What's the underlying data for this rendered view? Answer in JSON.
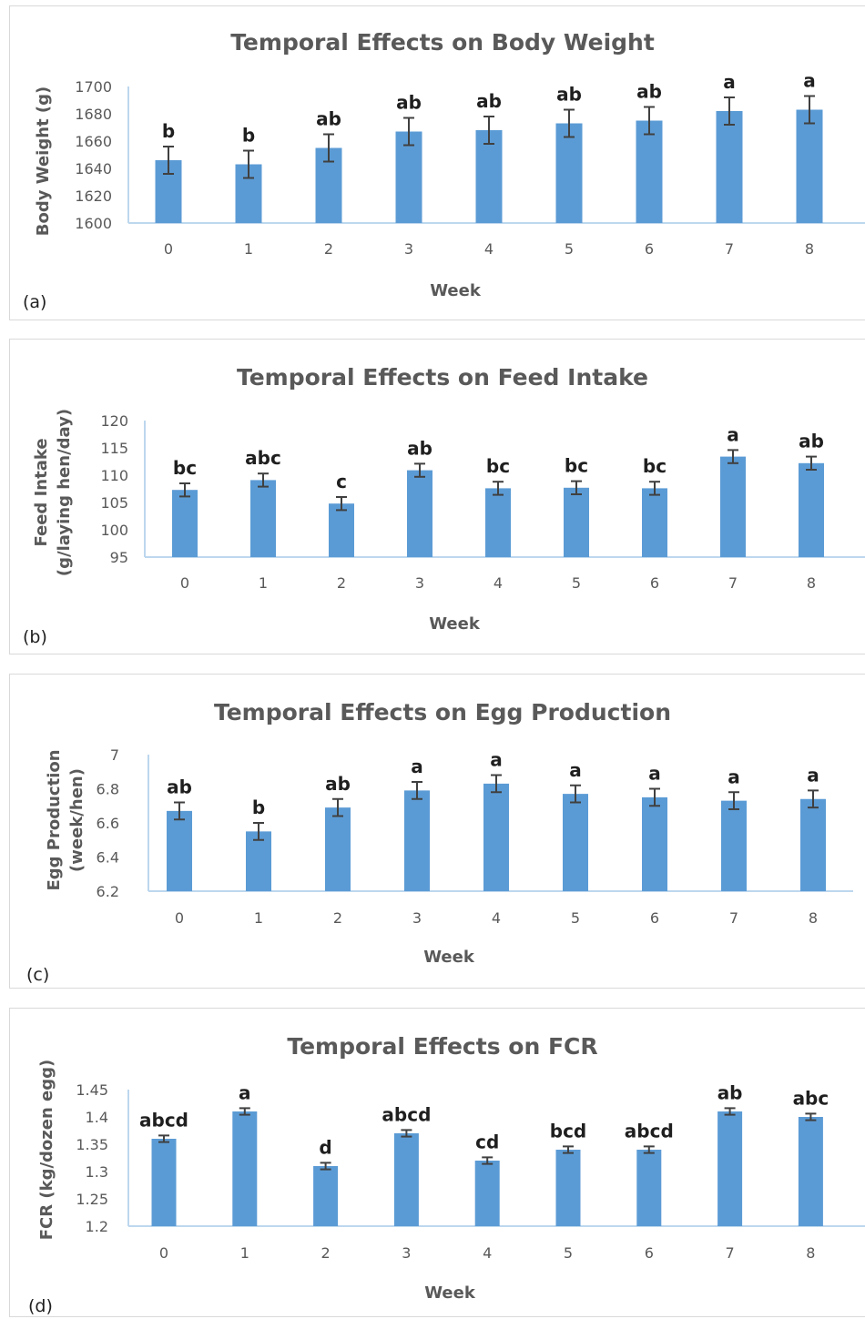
{
  "chart_data": [
    {
      "type": "bar",
      "panel": "(a)",
      "title": "Temporal Effects on Body Weight",
      "xlabel": "Week",
      "ylabel": [
        "Body Weight (g)"
      ],
      "categories": [
        "0",
        "1",
        "2",
        "3",
        "4",
        "5",
        "6",
        "7",
        "8"
      ],
      "values": [
        1646,
        1643,
        1655,
        1667,
        1668,
        1673,
        1675,
        1682,
        1683
      ],
      "error": [
        10,
        10,
        10,
        10,
        10,
        10,
        10,
        10,
        10
      ],
      "letters": [
        "b",
        "b",
        "ab",
        "ab",
        "ab",
        "ab",
        "ab",
        "a",
        "a"
      ],
      "ylim": [
        1600,
        1700
      ],
      "yticks": [
        "1600",
        "1620",
        "1640",
        "1660",
        "1680",
        "1700"
      ],
      "grid": false
    },
    {
      "type": "bar",
      "panel": "(b)",
      "title": "Temporal Effects on Feed Intake",
      "xlabel": "Week",
      "ylabel": [
        "Feed Intake",
        "(g/laying hen/day)"
      ],
      "categories": [
        "0",
        "1",
        "2",
        "3",
        "4",
        "5",
        "6",
        "7",
        "8"
      ],
      "values": [
        107.3,
        109.1,
        104.8,
        110.9,
        107.6,
        107.7,
        107.6,
        113.4,
        112.2
      ],
      "error": [
        1.2,
        1.2,
        1.2,
        1.2,
        1.2,
        1.2,
        1.2,
        1.2,
        1.2
      ],
      "letters": [
        "bc",
        "abc",
        "c",
        "ab",
        "bc",
        "bc",
        "bc",
        "a",
        "ab"
      ],
      "ylim": [
        95,
        120
      ],
      "yticks": [
        "95",
        "100",
        "105",
        "110",
        "115",
        "120"
      ],
      "grid": false
    },
    {
      "type": "bar",
      "panel": "(c)",
      "title": "Temporal Effects on Egg Production",
      "xlabel": "Week",
      "ylabel": [
        "Egg Production",
        "(week/hen)"
      ],
      "categories": [
        "0",
        "1",
        "2",
        "3",
        "4",
        "5",
        "6",
        "7",
        "8"
      ],
      "values": [
        6.67,
        6.55,
        6.69,
        6.79,
        6.83,
        6.77,
        6.75,
        6.73,
        6.74
      ],
      "error": [
        0.05,
        0.05,
        0.05,
        0.05,
        0.05,
        0.05,
        0.05,
        0.05,
        0.05
      ],
      "letters": [
        "ab",
        "b",
        "ab",
        "a",
        "a",
        "a",
        "a",
        "a",
        "a"
      ],
      "ylim": [
        6.2,
        7.0
      ],
      "yticks": [
        "6.2",
        "6.4",
        "6.6",
        "6.8",
        "7"
      ],
      "grid": false
    },
    {
      "type": "bar",
      "panel": "(d)",
      "title": "Temporal Effects on FCR",
      "xlabel": "Week",
      "ylabel": [
        "FCR (kg/dozen egg)"
      ],
      "categories": [
        "0",
        "1",
        "2",
        "3",
        "4",
        "5",
        "6",
        "7",
        "8"
      ],
      "values": [
        1.36,
        1.41,
        1.31,
        1.37,
        1.32,
        1.34,
        1.34,
        1.41,
        1.4
      ],
      "error": [
        0.006,
        0.006,
        0.006,
        0.006,
        0.006,
        0.006,
        0.006,
        0.006,
        0.006
      ],
      "letters": [
        "abcd",
        "a",
        "d",
        "abcd",
        "cd",
        "bcd",
        "abcd",
        "ab",
        "abc"
      ],
      "ylim": [
        1.2,
        1.45
      ],
      "yticks": [
        "1.2",
        "1.25",
        "1.3",
        "1.35",
        "1.4",
        "1.45"
      ],
      "grid": false
    }
  ]
}
